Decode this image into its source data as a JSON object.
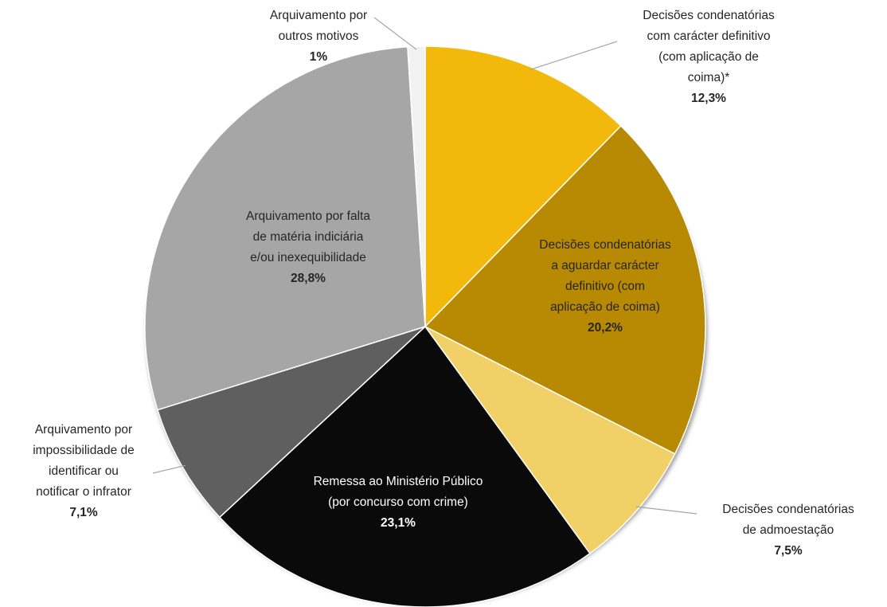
{
  "chart_data": {
    "type": "pie",
    "categories": [
      "Decisões condenatórias\ncom carácter definitivo\n(com aplicação de\ncoima)*",
      "Decisões condenatórias\na aguardar carácter\ndefinitivo (com\naplicação de coima)",
      "Decisões condenatórias\nde admoestação",
      "Remessa ao Ministério Público\n(por concurso com crime)",
      "Arquivamento por\nimpossibilidade de\nidentificar ou\nnotificar o infrator",
      "Arquivamento por falta\nde matéria indiciária\ne/ou inexequibilidade",
      "Arquivamento por\noutros motivos"
    ],
    "values": [
      12.3,
      20.2,
      7.5,
      23.1,
      7.1,
      28.8,
      1
    ],
    "value_labels": [
      "12,3%",
      "20,2%",
      "7,5%",
      "23,1%",
      "7,1%",
      "28,8%",
      "1%"
    ],
    "colors": [
      "#f2b90c",
      "#b88a04",
      "#f2d068",
      "#0a0a0a",
      "#5f5f5f",
      "#a6a6a6",
      "#f2f2f2"
    ]
  }
}
